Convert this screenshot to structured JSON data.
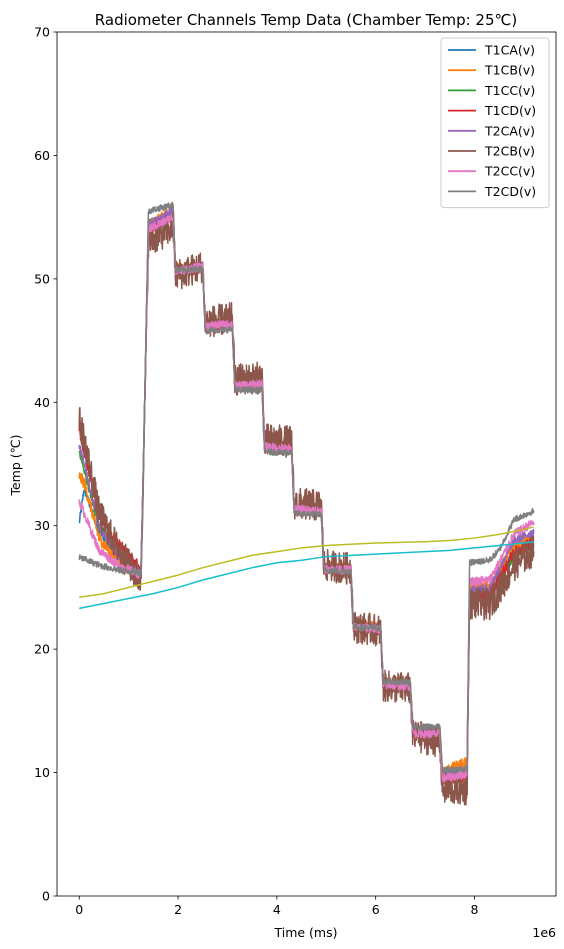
{
  "chart_data": {
    "type": "line",
    "title": "Radiometer Channels Temp Data (Chamber Temp: 25℃)",
    "xlabel": "Time (ms)",
    "ylabel": "Temp (℃)",
    "x_offset_label": "1e6",
    "xlim": [
      -450000,
      9650000
    ],
    "ylim": [
      0,
      70
    ],
    "xticks": [
      0,
      2,
      4,
      6,
      8
    ],
    "yticks": [
      0,
      10,
      20,
      30,
      40,
      50,
      60,
      70
    ],
    "grid": false,
    "legend_position": "upper right",
    "series": [
      {
        "name": "T1CA(v)",
        "color": "#1f77b4",
        "noise": 0.3,
        "x": [
          0,
          100000,
          400000,
          800000,
          1250000,
          1300000,
          1400000,
          1900000,
          1950000,
          2500000,
          2550000,
          3100000,
          3150000,
          3700000,
          3750000,
          4300000,
          4350000,
          4900000,
          4950000,
          5500000,
          5550000,
          6100000,
          6150000,
          6700000,
          6750000,
          7300000,
          7350000,
          7850000,
          7900000,
          8300000,
          8500000,
          8800000,
          9200000
        ],
        "y": [
          30.2,
          33.0,
          29.5,
          27.5,
          26.2,
          35.0,
          54.5,
          55.3,
          50.7,
          51.0,
          46.2,
          46.3,
          41.3,
          41.5,
          36.3,
          36.2,
          31.3,
          31.2,
          26.5,
          26.4,
          21.8,
          21.6,
          17.2,
          17.1,
          13.3,
          13.2,
          9.5,
          10.0,
          24.5,
          24.6,
          26.0,
          28.0,
          28.8
        ]
      },
      {
        "name": "T1CB(v)",
        "color": "#ff7f0e",
        "noise": 0.5,
        "x": [
          0,
          100000,
          400000,
          800000,
          1250000,
          1300000,
          1400000,
          1900000,
          1950000,
          2500000,
          2550000,
          3100000,
          3150000,
          3700000,
          3750000,
          4300000,
          4350000,
          4900000,
          4950000,
          5500000,
          5550000,
          6100000,
          6150000,
          6700000,
          6750000,
          7300000,
          7350000,
          7850000,
          7900000,
          8300000,
          8500000,
          8800000,
          9200000
        ],
        "y": [
          34.0,
          33.5,
          29.0,
          27.0,
          26.0,
          35.0,
          54.2,
          55.6,
          50.8,
          51.0,
          46.3,
          46.5,
          41.3,
          41.6,
          36.5,
          36.3,
          31.5,
          31.3,
          26.6,
          26.5,
          21.9,
          21.7,
          17.2,
          17.2,
          13.4,
          13.4,
          10.0,
          10.8,
          25.0,
          25.0,
          26.3,
          28.3,
          29.0
        ]
      },
      {
        "name": "T1CC(v)",
        "color": "#2ca02c",
        "noise": 0.3,
        "x": [
          0,
          100000,
          400000,
          800000,
          1250000,
          1300000,
          1400000,
          1900000,
          1950000,
          2500000,
          2550000,
          3100000,
          3150000,
          3700000,
          3750000,
          4300000,
          4350000,
          4900000,
          4950000,
          5500000,
          5550000,
          6100000,
          6150000,
          6700000,
          6750000,
          7300000,
          7350000,
          7850000,
          7900000,
          8300000,
          8500000,
          8800000,
          9200000
        ],
        "y": [
          36.0,
          34.5,
          30.0,
          27.8,
          26.3,
          35.0,
          54.0,
          55.0,
          50.6,
          50.9,
          46.2,
          46.3,
          41.2,
          41.4,
          36.2,
          36.1,
          31.2,
          31.1,
          26.4,
          26.3,
          21.7,
          21.6,
          17.1,
          17.0,
          13.2,
          13.1,
          9.4,
          9.8,
          24.0,
          24.1,
          25.6,
          27.5,
          28.5
        ]
      },
      {
        "name": "T1CD(v)",
        "color": "#d62728",
        "noise": 0.45,
        "x": [
          0,
          100000,
          400000,
          800000,
          1250000,
          1300000,
          1400000,
          1900000,
          1950000,
          2500000,
          2550000,
          3100000,
          3150000,
          3700000,
          3750000,
          4300000,
          4350000,
          4900000,
          4950000,
          5500000,
          5550000,
          6100000,
          6150000,
          6700000,
          6750000,
          7300000,
          7350000,
          7850000,
          7900000,
          8300000,
          8500000,
          8800000,
          9200000
        ],
        "y": [
          38.0,
          36.0,
          31.0,
          28.5,
          26.5,
          35.0,
          54.0,
          55.2,
          50.6,
          50.9,
          46.2,
          46.4,
          41.3,
          41.5,
          36.3,
          36.2,
          31.3,
          31.2,
          26.5,
          26.4,
          21.8,
          21.6,
          17.1,
          17.0,
          13.3,
          13.2,
          9.3,
          9.7,
          24.2,
          24.3,
          25.8,
          27.8,
          28.7
        ]
      },
      {
        "name": "T2CA(v)",
        "color": "#9467bd",
        "noise": 0.35,
        "x": [
          0,
          100000,
          400000,
          800000,
          1250000,
          1300000,
          1400000,
          1900000,
          1950000,
          2500000,
          2550000,
          3100000,
          3150000,
          3700000,
          3750000,
          4300000,
          4350000,
          4900000,
          4950000,
          5500000,
          5550000,
          6100000,
          6150000,
          6700000,
          6750000,
          7300000,
          7350000,
          7850000,
          7900000,
          8300000,
          8500000,
          8800000,
          9200000
        ],
        "y": [
          36.5,
          35.0,
          30.0,
          27.5,
          26.2,
          35.0,
          54.3,
          55.5,
          50.7,
          51.0,
          46.3,
          46.4,
          41.4,
          41.6,
          36.5,
          36.3,
          31.4,
          31.3,
          26.6,
          26.5,
          21.9,
          21.7,
          17.2,
          17.1,
          13.4,
          13.3,
          9.8,
          10.3,
          24.8,
          24.9,
          26.5,
          28.8,
          29.5
        ]
      },
      {
        "name": "T2CB(v)",
        "color": "#8c564b",
        "noise": 1.3,
        "x": [
          0,
          100000,
          400000,
          800000,
          1250000,
          1300000,
          1400000,
          1900000,
          1950000,
          2500000,
          2550000,
          3100000,
          3150000,
          3700000,
          3750000,
          4300000,
          4350000,
          4900000,
          4950000,
          5500000,
          5550000,
          6100000,
          6150000,
          6700000,
          6750000,
          7300000,
          7350000,
          7850000,
          7900000,
          8300000,
          8500000,
          8800000,
          9200000
        ],
        "y": [
          38.5,
          37.0,
          31.0,
          28.0,
          25.5,
          35.0,
          53.0,
          54.2,
          50.3,
          51.0,
          46.5,
          46.8,
          41.8,
          42.0,
          37.0,
          36.8,
          31.8,
          31.6,
          26.8,
          26.5,
          21.8,
          21.5,
          17.0,
          16.8,
          13.0,
          12.5,
          8.7,
          8.6,
          23.7,
          23.6,
          24.8,
          26.8,
          28.0
        ]
      },
      {
        "name": "T2CC(v)",
        "color": "#e377c2",
        "noise": 0.35,
        "x": [
          0,
          100000,
          400000,
          800000,
          1250000,
          1300000,
          1400000,
          1900000,
          1950000,
          2500000,
          2550000,
          3100000,
          3150000,
          3700000,
          3750000,
          4300000,
          4350000,
          4900000,
          4950000,
          5500000,
          5550000,
          6100000,
          6150000,
          6700000,
          6750000,
          7300000,
          7350000,
          7850000,
          7900000,
          8300000,
          8500000,
          8800000,
          9200000
        ],
        "y": [
          32.0,
          31.0,
          28.0,
          26.8,
          26.0,
          35.0,
          54.0,
          55.0,
          50.6,
          51.0,
          46.2,
          46.3,
          41.3,
          41.5,
          36.4,
          36.2,
          31.4,
          31.2,
          26.5,
          26.4,
          21.8,
          21.6,
          17.1,
          17.0,
          13.2,
          13.1,
          9.5,
          9.9,
          25.5,
          25.6,
          27.0,
          29.3,
          30.3
        ]
      },
      {
        "name": "T2CD(v)",
        "color": "#7f7f7f",
        "noise": 0.25,
        "x": [
          0,
          100000,
          400000,
          800000,
          1250000,
          1300000,
          1400000,
          1900000,
          1950000,
          2500000,
          2550000,
          3100000,
          3150000,
          3700000,
          3750000,
          4300000,
          4350000,
          4900000,
          4950000,
          5500000,
          5550000,
          6100000,
          6150000,
          6700000,
          6750000,
          7300000,
          7350000,
          7850000,
          7900000,
          8300000,
          8500000,
          8800000,
          9200000
        ],
        "y": [
          27.4,
          27.3,
          26.8,
          26.4,
          26.2,
          35.0,
          55.5,
          56.0,
          50.7,
          50.8,
          45.8,
          45.9,
          41.0,
          41.0,
          36.0,
          35.9,
          31.0,
          30.9,
          26.4,
          26.3,
          21.8,
          21.7,
          17.4,
          17.3,
          13.7,
          13.7,
          10.2,
          10.3,
          27.0,
          27.2,
          28.0,
          30.5,
          31.2
        ]
      },
      {
        "name": "",
        "color": "#bcbd22",
        "noise": 0,
        "x": [
          0,
          500000,
          1000000,
          1500000,
          2000000,
          2500000,
          3000000,
          3500000,
          4000000,
          4500000,
          5000000,
          5500000,
          6000000,
          6500000,
          7000000,
          7500000,
          8000000,
          8500000,
          9000000,
          9200000
        ],
        "y": [
          24.2,
          24.5,
          25.0,
          25.5,
          26.0,
          26.6,
          27.1,
          27.6,
          27.9,
          28.2,
          28.4,
          28.5,
          28.6,
          28.65,
          28.7,
          28.8,
          29.0,
          29.3,
          29.7,
          29.9
        ]
      },
      {
        "name": "",
        "color": "#17becf",
        "noise": 0,
        "x": [
          0,
          500000,
          1000000,
          1500000,
          2000000,
          2500000,
          3000000,
          3500000,
          4000000,
          4500000,
          5000000,
          5500000,
          6000000,
          6500000,
          7000000,
          7500000,
          8000000,
          8500000,
          9000000,
          9200000
        ],
        "y": [
          23.3,
          23.7,
          24.1,
          24.5,
          25.0,
          25.6,
          26.1,
          26.6,
          27.0,
          27.2,
          27.5,
          27.6,
          27.7,
          27.8,
          27.9,
          28.0,
          28.2,
          28.4,
          28.6,
          28.7
        ]
      }
    ]
  }
}
